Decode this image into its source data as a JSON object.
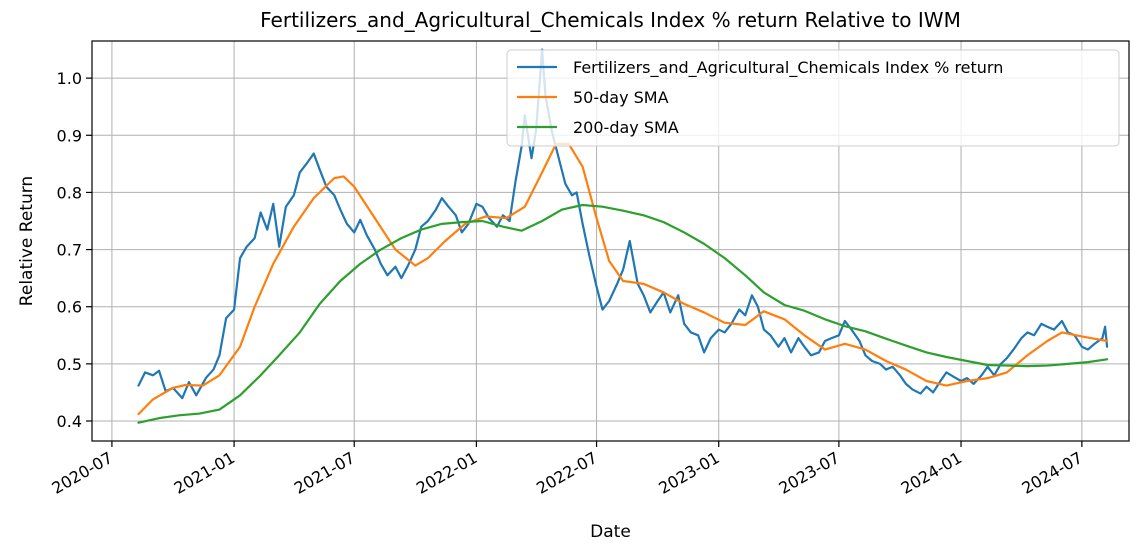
{
  "chart_data": {
    "type": "line",
    "title": "Fertilizers_and_Agricultural_Chemicals Index % return Relative to IWM",
    "xlabel": "Date",
    "ylabel": "Relative Return",
    "x_ticks": [
      "2020-07",
      "2021-01",
      "2021-07",
      "2022-01",
      "2022-07",
      "2023-01",
      "2023-07",
      "2024-01",
      "2024-07"
    ],
    "y_ticks": [
      "0.4",
      "0.5",
      "0.6",
      "0.7",
      "0.8",
      "0.9",
      "1.0"
    ],
    "xlim": [
      "2020-06-01",
      "2024-09-10"
    ],
    "ylim": [
      0.365,
      1.065
    ],
    "grid": true,
    "legend_position": "top-right",
    "series": [
      {
        "name": "Fertilizers_and_Agricultural_Chemicals Index % return",
        "color": "#1f77b4",
        "points": [
          [
            "2020-08-10",
            0.462
          ],
          [
            "2020-08-20",
            0.485
          ],
          [
            "2020-09-01",
            0.48
          ],
          [
            "2020-09-10",
            0.488
          ],
          [
            "2020-09-20",
            0.452
          ],
          [
            "2020-10-01",
            0.458
          ],
          [
            "2020-10-15",
            0.44
          ],
          [
            "2020-10-25",
            0.468
          ],
          [
            "2020-11-05",
            0.445
          ],
          [
            "2020-11-20",
            0.476
          ],
          [
            "2020-12-01",
            0.49
          ],
          [
            "2020-12-10",
            0.515
          ],
          [
            "2020-12-20",
            0.58
          ],
          [
            "2021-01-01",
            0.595
          ],
          [
            "2021-01-10",
            0.685
          ],
          [
            "2021-01-20",
            0.705
          ],
          [
            "2021-02-01",
            0.72
          ],
          [
            "2021-02-10",
            0.765
          ],
          [
            "2021-02-20",
            0.735
          ],
          [
            "2021-03-01",
            0.78
          ],
          [
            "2021-03-10",
            0.705
          ],
          [
            "2021-03-20",
            0.775
          ],
          [
            "2021-04-01",
            0.795
          ],
          [
            "2021-04-10",
            0.835
          ],
          [
            "2021-04-20",
            0.85
          ],
          [
            "2021-05-01",
            0.868
          ],
          [
            "2021-05-10",
            0.84
          ],
          [
            "2021-05-20",
            0.81
          ],
          [
            "2021-06-01",
            0.795
          ],
          [
            "2021-06-10",
            0.77
          ],
          [
            "2021-06-20",
            0.745
          ],
          [
            "2021-07-01",
            0.73
          ],
          [
            "2021-07-10",
            0.752
          ],
          [
            "2021-07-20",
            0.725
          ],
          [
            "2021-08-01",
            0.7
          ],
          [
            "2021-08-10",
            0.675
          ],
          [
            "2021-08-20",
            0.655
          ],
          [
            "2021-09-01",
            0.67
          ],
          [
            "2021-09-10",
            0.65
          ],
          [
            "2021-09-20",
            0.672
          ],
          [
            "2021-10-01",
            0.7
          ],
          [
            "2021-10-10",
            0.74
          ],
          [
            "2021-10-20",
            0.75
          ],
          [
            "2021-11-01",
            0.77
          ],
          [
            "2021-11-10",
            0.79
          ],
          [
            "2021-11-20",
            0.775
          ],
          [
            "2021-12-01",
            0.76
          ],
          [
            "2021-12-10",
            0.73
          ],
          [
            "2021-12-20",
            0.745
          ],
          [
            "2022-01-01",
            0.78
          ],
          [
            "2022-01-10",
            0.775
          ],
          [
            "2022-01-20",
            0.755
          ],
          [
            "2022-02-01",
            0.74
          ],
          [
            "2022-02-10",
            0.76
          ],
          [
            "2022-02-20",
            0.75
          ],
          [
            "2022-03-01",
            0.82
          ],
          [
            "2022-03-10",
            0.88
          ],
          [
            "2022-03-15",
            0.935
          ],
          [
            "2022-03-25",
            0.86
          ],
          [
            "2022-04-01",
            0.91
          ],
          [
            "2022-04-10",
            1.05
          ],
          [
            "2022-04-15",
            0.97
          ],
          [
            "2022-04-25",
            0.905
          ],
          [
            "2022-05-05",
            0.86
          ],
          [
            "2022-05-15",
            0.815
          ],
          [
            "2022-05-25",
            0.795
          ],
          [
            "2022-06-01",
            0.8
          ],
          [
            "2022-06-10",
            0.745
          ],
          [
            "2022-06-20",
            0.69
          ],
          [
            "2022-07-01",
            0.635
          ],
          [
            "2022-07-10",
            0.595
          ],
          [
            "2022-07-20",
            0.61
          ],
          [
            "2022-08-01",
            0.64
          ],
          [
            "2022-08-10",
            0.665
          ],
          [
            "2022-08-20",
            0.715
          ],
          [
            "2022-09-01",
            0.64
          ],
          [
            "2022-09-10",
            0.62
          ],
          [
            "2022-09-20",
            0.59
          ],
          [
            "2022-10-01",
            0.61
          ],
          [
            "2022-10-10",
            0.625
          ],
          [
            "2022-10-20",
            0.59
          ],
          [
            "2022-11-01",
            0.62
          ],
          [
            "2022-11-10",
            0.57
          ],
          [
            "2022-11-20",
            0.555
          ],
          [
            "2022-12-01",
            0.55
          ],
          [
            "2022-12-10",
            0.52
          ],
          [
            "2022-12-20",
            0.545
          ],
          [
            "2023-01-01",
            0.56
          ],
          [
            "2023-01-10",
            0.555
          ],
          [
            "2023-01-20",
            0.57
          ],
          [
            "2023-02-01",
            0.595
          ],
          [
            "2023-02-10",
            0.585
          ],
          [
            "2023-02-20",
            0.62
          ],
          [
            "2023-03-01",
            0.6
          ],
          [
            "2023-03-10",
            0.56
          ],
          [
            "2023-03-20",
            0.55
          ],
          [
            "2023-04-01",
            0.53
          ],
          [
            "2023-04-10",
            0.545
          ],
          [
            "2023-04-20",
            0.52
          ],
          [
            "2023-05-01",
            0.545
          ],
          [
            "2023-05-10",
            0.53
          ],
          [
            "2023-05-20",
            0.515
          ],
          [
            "2023-06-01",
            0.52
          ],
          [
            "2023-06-10",
            0.54
          ],
          [
            "2023-06-20",
            0.545
          ],
          [
            "2023-07-01",
            0.55
          ],
          [
            "2023-07-10",
            0.575
          ],
          [
            "2023-07-20",
            0.56
          ],
          [
            "2023-08-01",
            0.54
          ],
          [
            "2023-08-10",
            0.515
          ],
          [
            "2023-08-20",
            0.505
          ],
          [
            "2023-09-01",
            0.5
          ],
          [
            "2023-09-10",
            0.49
          ],
          [
            "2023-09-20",
            0.495
          ],
          [
            "2023-10-01",
            0.48
          ],
          [
            "2023-10-10",
            0.465
          ],
          [
            "2023-10-20",
            0.455
          ],
          [
            "2023-11-01",
            0.448
          ],
          [
            "2023-11-10",
            0.46
          ],
          [
            "2023-11-20",
            0.45
          ],
          [
            "2023-12-01",
            0.47
          ],
          [
            "2023-12-10",
            0.485
          ],
          [
            "2023-12-20",
            0.478
          ],
          [
            "2024-01-01",
            0.47
          ],
          [
            "2024-01-10",
            0.475
          ],
          [
            "2024-01-20",
            0.465
          ],
          [
            "2024-02-01",
            0.48
          ],
          [
            "2024-02-10",
            0.495
          ],
          [
            "2024-02-20",
            0.48
          ],
          [
            "2024-03-01",
            0.5
          ],
          [
            "2024-03-10",
            0.51
          ],
          [
            "2024-03-20",
            0.525
          ],
          [
            "2024-04-01",
            0.545
          ],
          [
            "2024-04-10",
            0.555
          ],
          [
            "2024-04-20",
            0.55
          ],
          [
            "2024-05-01",
            0.57
          ],
          [
            "2024-05-10",
            0.565
          ],
          [
            "2024-05-20",
            0.56
          ],
          [
            "2024-06-01",
            0.575
          ],
          [
            "2024-06-10",
            0.555
          ],
          [
            "2024-06-20",
            0.55
          ],
          [
            "2024-07-01",
            0.53
          ],
          [
            "2024-07-10",
            0.525
          ],
          [
            "2024-07-20",
            0.535
          ],
          [
            "2024-08-01",
            0.545
          ],
          [
            "2024-08-05",
            0.565
          ],
          [
            "2024-08-08",
            0.53
          ]
        ]
      },
      {
        "name": "50-day SMA",
        "color": "#ff7f0e",
        "points": [
          [
            "2020-08-10",
            0.412
          ],
          [
            "2020-09-01",
            0.438
          ],
          [
            "2020-10-01",
            0.458
          ],
          [
            "2020-10-20",
            0.463
          ],
          [
            "2020-11-15",
            0.462
          ],
          [
            "2020-12-10",
            0.48
          ],
          [
            "2021-01-10",
            0.53
          ],
          [
            "2021-02-01",
            0.6
          ],
          [
            "2021-03-01",
            0.675
          ],
          [
            "2021-04-01",
            0.74
          ],
          [
            "2021-05-01",
            0.79
          ],
          [
            "2021-06-01",
            0.825
          ],
          [
            "2021-06-15",
            0.828
          ],
          [
            "2021-07-01",
            0.81
          ],
          [
            "2021-08-01",
            0.755
          ],
          [
            "2021-09-01",
            0.7
          ],
          [
            "2021-10-01",
            0.672
          ],
          [
            "2021-10-20",
            0.685
          ],
          [
            "2021-11-15",
            0.715
          ],
          [
            "2021-12-15",
            0.745
          ],
          [
            "2022-01-15",
            0.758
          ],
          [
            "2022-02-15",
            0.755
          ],
          [
            "2022-03-15",
            0.775
          ],
          [
            "2022-04-10",
            0.835
          ],
          [
            "2022-05-01",
            0.885
          ],
          [
            "2022-05-20",
            0.885
          ],
          [
            "2022-06-10",
            0.845
          ],
          [
            "2022-07-01",
            0.755
          ],
          [
            "2022-07-20",
            0.68
          ],
          [
            "2022-08-10",
            0.645
          ],
          [
            "2022-09-10",
            0.64
          ],
          [
            "2022-10-10",
            0.625
          ],
          [
            "2022-11-10",
            0.605
          ],
          [
            "2022-12-10",
            0.59
          ],
          [
            "2023-01-10",
            0.572
          ],
          [
            "2023-02-10",
            0.568
          ],
          [
            "2023-03-10",
            0.592
          ],
          [
            "2023-04-10",
            0.578
          ],
          [
            "2023-05-10",
            0.55
          ],
          [
            "2023-06-10",
            0.525
          ],
          [
            "2023-07-10",
            0.535
          ],
          [
            "2023-08-10",
            0.525
          ],
          [
            "2023-09-10",
            0.505
          ],
          [
            "2023-10-10",
            0.49
          ],
          [
            "2023-11-10",
            0.47
          ],
          [
            "2023-12-10",
            0.462
          ],
          [
            "2024-01-10",
            0.47
          ],
          [
            "2024-02-10",
            0.475
          ],
          [
            "2024-03-10",
            0.485
          ],
          [
            "2024-04-10",
            0.515
          ],
          [
            "2024-05-10",
            0.54
          ],
          [
            "2024-06-01",
            0.555
          ],
          [
            "2024-07-01",
            0.548
          ],
          [
            "2024-08-08",
            0.54
          ]
        ]
      },
      {
        "name": "200-day SMA",
        "color": "#2ca02c",
        "points": [
          [
            "2020-08-10",
            0.397
          ],
          [
            "2020-09-10",
            0.405
          ],
          [
            "2020-10-10",
            0.41
          ],
          [
            "2020-11-10",
            0.413
          ],
          [
            "2020-12-10",
            0.42
          ],
          [
            "2021-01-10",
            0.445
          ],
          [
            "2021-02-10",
            0.48
          ],
          [
            "2021-03-10",
            0.515
          ],
          [
            "2021-04-10",
            0.555
          ],
          [
            "2021-05-10",
            0.605
          ],
          [
            "2021-06-10",
            0.645
          ],
          [
            "2021-07-10",
            0.675
          ],
          [
            "2021-08-10",
            0.7
          ],
          [
            "2021-09-10",
            0.72
          ],
          [
            "2021-10-10",
            0.735
          ],
          [
            "2021-11-10",
            0.745
          ],
          [
            "2021-12-10",
            0.748
          ],
          [
            "2022-01-10",
            0.75
          ],
          [
            "2022-02-10",
            0.74
          ],
          [
            "2022-03-10",
            0.733
          ],
          [
            "2022-04-10",
            0.75
          ],
          [
            "2022-05-10",
            0.77
          ],
          [
            "2022-06-10",
            0.778
          ],
          [
            "2022-07-10",
            0.775
          ],
          [
            "2022-08-10",
            0.768
          ],
          [
            "2022-09-10",
            0.76
          ],
          [
            "2022-10-10",
            0.748
          ],
          [
            "2022-11-10",
            0.73
          ],
          [
            "2022-12-10",
            0.71
          ],
          [
            "2023-01-10",
            0.685
          ],
          [
            "2023-02-10",
            0.655
          ],
          [
            "2023-03-10",
            0.625
          ],
          [
            "2023-04-10",
            0.603
          ],
          [
            "2023-05-10",
            0.593
          ],
          [
            "2023-06-10",
            0.578
          ],
          [
            "2023-07-10",
            0.566
          ],
          [
            "2023-08-10",
            0.557
          ],
          [
            "2023-09-10",
            0.544
          ],
          [
            "2023-10-10",
            0.532
          ],
          [
            "2023-11-10",
            0.52
          ],
          [
            "2023-12-10",
            0.512
          ],
          [
            "2024-01-10",
            0.505
          ],
          [
            "2024-02-10",
            0.498
          ],
          [
            "2024-03-10",
            0.497
          ],
          [
            "2024-04-10",
            0.496
          ],
          [
            "2024-05-10",
            0.497
          ],
          [
            "2024-06-10",
            0.5
          ],
          [
            "2024-07-10",
            0.503
          ],
          [
            "2024-08-08",
            0.508
          ]
        ]
      }
    ]
  }
}
